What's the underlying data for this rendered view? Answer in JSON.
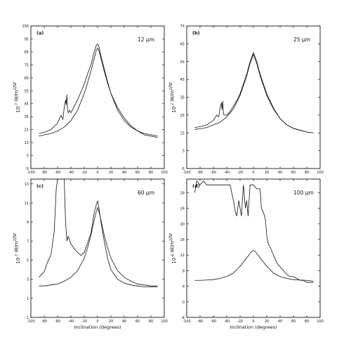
{
  "chart_data": [
    {
      "type": "line",
      "panel_label": "(a)",
      "wavelength": "12 µm",
      "ylabel": "10-7 W/m2/sr",
      "xlabel": "",
      "xlim": [
        -100,
        100
      ],
      "ylim": [
        -5,
        105
      ],
      "xticks": [
        -100,
        -80,
        -60,
        -40,
        -20,
        0,
        20,
        40,
        60,
        80,
        100
      ],
      "yticks": [
        -5,
        5,
        15,
        25,
        35,
        45,
        55,
        65,
        75,
        85,
        95,
        105
      ],
      "series": [
        {
          "x": [
            -88,
            -80,
            -70,
            -60,
            -55,
            -52,
            -50,
            -48,
            -47,
            -46,
            -45,
            -44,
            -42,
            -40,
            -35,
            -30,
            -25,
            -20,
            -15,
            -10,
            -5,
            -2,
            0,
            2,
            5,
            10,
            15,
            20,
            30,
            40,
            50,
            60,
            70,
            80,
            90
          ],
          "y": [
            22,
            23,
            25,
            30,
            36,
            33,
            42,
            48,
            44,
            52,
            40,
            38,
            40,
            38,
            43,
            48,
            54,
            60,
            68,
            75,
            85,
            90,
            91,
            89,
            82,
            72,
            62,
            53,
            42,
            34,
            28,
            24,
            21,
            20,
            19
          ]
        },
        {
          "x": [
            -88,
            -80,
            -70,
            -60,
            -50,
            -40,
            -30,
            -20,
            -15,
            -10,
            -5,
            -2,
            0,
            2,
            5,
            10,
            15,
            20,
            30,
            40,
            50,
            60,
            70,
            80,
            90
          ],
          "y": [
            20,
            21,
            22,
            24,
            27,
            32,
            40,
            53,
            61,
            70,
            80,
            86,
            88,
            86,
            80,
            70,
            61,
            53,
            40,
            32,
            27,
            24,
            22,
            21,
            20
          ]
        }
      ]
    },
    {
      "type": "line",
      "panel_label": "(b)",
      "wavelength": "25 µm",
      "ylabel": "10-7 W/m2/sr",
      "xlabel": "",
      "xlim": [
        -100,
        100
      ],
      "ylim": [
        -5,
        75
      ],
      "xticks": [
        -100,
        -80,
        -60,
        -40,
        -20,
        0,
        20,
        40,
        60,
        80,
        100
      ],
      "yticks": [
        -5,
        5,
        15,
        25,
        35,
        45,
        55,
        65,
        75
      ],
      "series": [
        {
          "x": [
            -88,
            -80,
            -70,
            -60,
            -55,
            -52,
            -50,
            -48,
            -47,
            -46,
            -45,
            -44,
            -42,
            -40,
            -35,
            -30,
            -25,
            -20,
            -10,
            -5,
            0,
            5,
            10,
            20,
            30,
            40,
            50,
            60,
            70,
            80,
            90
          ],
          "y": [
            18,
            18.5,
            19.5,
            22,
            25,
            24,
            29,
            32,
            28,
            33,
            26,
            25,
            25,
            25,
            27,
            30,
            33,
            37,
            48,
            55,
            60,
            55,
            48,
            37,
            29,
            23,
            19.5,
            17.5,
            16.5,
            15.5,
            15
          ]
        },
        {
          "x": [
            -88,
            -80,
            -70,
            -60,
            -50,
            -40,
            -30,
            -20,
            -10,
            -5,
            0,
            5,
            10,
            20,
            30,
            40,
            50,
            60,
            70,
            80,
            90
          ],
          "y": [
            17,
            17.3,
            18,
            19.5,
            21,
            24,
            28.5,
            36,
            47,
            54,
            59,
            54,
            47,
            36,
            28.5,
            23,
            19.5,
            17.5,
            16.5,
            15.5,
            15
          ]
        }
      ]
    },
    {
      "type": "line",
      "panel_label": "(c)",
      "wavelength": "60 µm",
      "ylabel": "10-7 W/m2/sr",
      "xlabel": "Inclination (degrees)",
      "xlim": [
        -100,
        100
      ],
      "ylim": [
        -1,
        13.5
      ],
      "xticks": [
        -100,
        -80,
        -60,
        -40,
        -20,
        0,
        20,
        40,
        60,
        80,
        100
      ],
      "yticks": [
        -1,
        1,
        3,
        5,
        7,
        9,
        11,
        13
      ],
      "series": [
        {
          "x": [
            -88,
            -80,
            -75,
            -70,
            -65,
            -62,
            -60,
            -58,
            -55,
            -50,
            -48,
            -46,
            -44,
            -40,
            -35,
            -30,
            -25,
            -20,
            -15,
            -10,
            -5,
            -2,
            0,
            2,
            5,
            10,
            15,
            20,
            30,
            40,
            50,
            60,
            70,
            80,
            90
          ],
          "y": [
            3.2,
            3.8,
            4.8,
            5.5,
            8,
            12.5,
            13.8,
            13.8,
            13.8,
            13.8,
            9,
            7,
            7.5,
            6.7,
            6.2,
            5.8,
            5.5,
            5.8,
            6.8,
            7.8,
            10,
            10.8,
            11.2,
            10.5,
            9,
            7,
            5.2,
            4,
            3,
            2.6,
            2.4,
            2.3,
            2.2,
            2.2,
            2.2
          ]
        },
        {
          "x": [
            -88,
            -80,
            -70,
            -60,
            -50,
            -40,
            -30,
            -20,
            -15,
            -10,
            -5,
            -2,
            0,
            2,
            5,
            10,
            15,
            20,
            30,
            40,
            50,
            60,
            70,
            80,
            90
          ],
          "y": [
            2.3,
            2.3,
            2.4,
            2.5,
            2.8,
            3.2,
            3.9,
            5.2,
            6.3,
            7.6,
            9.2,
            10.1,
            10.5,
            10.1,
            9.2,
            7.6,
            6.3,
            5.2,
            3.9,
            3.2,
            2.8,
            2.5,
            2.4,
            2.3,
            2.3
          ]
        }
      ]
    },
    {
      "type": "line",
      "panel_label": "(d)",
      "wavelength": "100 µm",
      "ylabel": "10-6 W/m2/sr",
      "xlabel": "Inclination (degrees)",
      "xlim": [
        -100,
        100
      ],
      "ylim": [
        -4,
        31.5
      ],
      "xticks": [
        -100,
        -80,
        -60,
        -40,
        -20,
        0,
        20,
        40,
        60,
        80,
        100
      ],
      "yticks": [
        -4,
        0,
        4,
        8,
        12,
        16,
        20,
        24,
        28
      ],
      "series": [
        {
          "x": [
            -88,
            -85,
            -80,
            -75,
            -70,
            -60,
            -50,
            -40,
            -35,
            -30,
            -27,
            -25,
            -22,
            -20,
            -18,
            -15,
            -12,
            -10,
            -8,
            -5,
            0,
            5,
            10,
            12,
            15,
            18,
            20,
            22,
            25,
            30,
            35,
            40,
            45,
            50,
            55,
            60,
            65,
            70,
            75,
            80,
            85,
            90
          ],
          "y": [
            28,
            31,
            30,
            31,
            30,
            30,
            30,
            30,
            30,
            26,
            23,
            22,
            26,
            24,
            22,
            30,
            24,
            26,
            22,
            30,
            30,
            29,
            29,
            24,
            23,
            21,
            17,
            15,
            14,
            12,
            10,
            9,
            8,
            7,
            6.5,
            6.5,
            6,
            5.5,
            5.5,
            5,
            5,
            5
          ]
        },
        {
          "x": [
            -88,
            -80,
            -70,
            -60,
            -50,
            -40,
            -30,
            -20,
            -15,
            -10,
            -5,
            -2,
            0,
            2,
            5,
            10,
            15,
            20,
            30,
            40,
            50,
            60,
            70,
            80,
            90
          ],
          "y": [
            5.5,
            5.5,
            5.6,
            5.7,
            6,
            6.5,
            7.4,
            9.1,
            10.2,
            11.3,
            12.4,
            13,
            13.2,
            13,
            12.4,
            11.3,
            10.2,
            9.1,
            7.4,
            6.5,
            6,
            5.7,
            5.6,
            5.5,
            5.3
          ]
        }
      ]
    }
  ]
}
